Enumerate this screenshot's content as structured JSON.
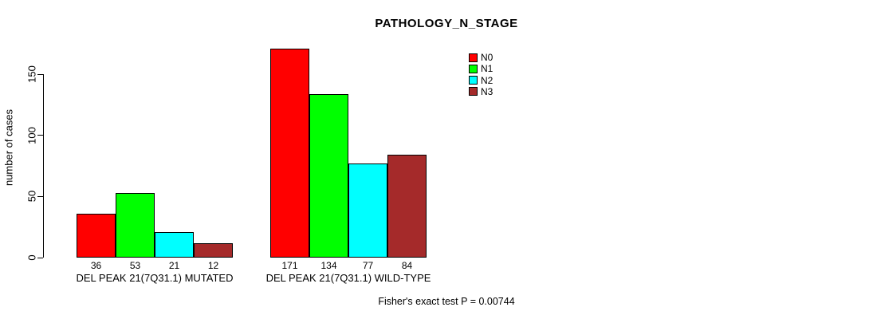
{
  "chart_data": {
    "type": "bar",
    "title": "PATHOLOGY_N_STAGE",
    "ylabel": "number of cases",
    "xlabel": "",
    "ylim": [
      0,
      150
    ],
    "yticks": [
      0,
      50,
      100,
      150
    ],
    "grid": false,
    "legend_position": "top-right",
    "categories": [
      "DEL PEAK 21(7Q31.1) MUTATED",
      "DEL PEAK 21(7Q31.1) WILD-TYPE"
    ],
    "series": [
      {
        "name": "N0",
        "color": "#FF0000",
        "values": [
          36,
          171
        ]
      },
      {
        "name": "N1",
        "color": "#00FF00",
        "values": [
          53,
          134
        ]
      },
      {
        "name": "N2",
        "color": "#00FFFF",
        "values": [
          21,
          77
        ]
      },
      {
        "name": "N3",
        "color": "#A52A2A",
        "values": [
          12,
          84
        ]
      }
    ],
    "annotation": "Fisher's exact test P = 0.00744"
  }
}
